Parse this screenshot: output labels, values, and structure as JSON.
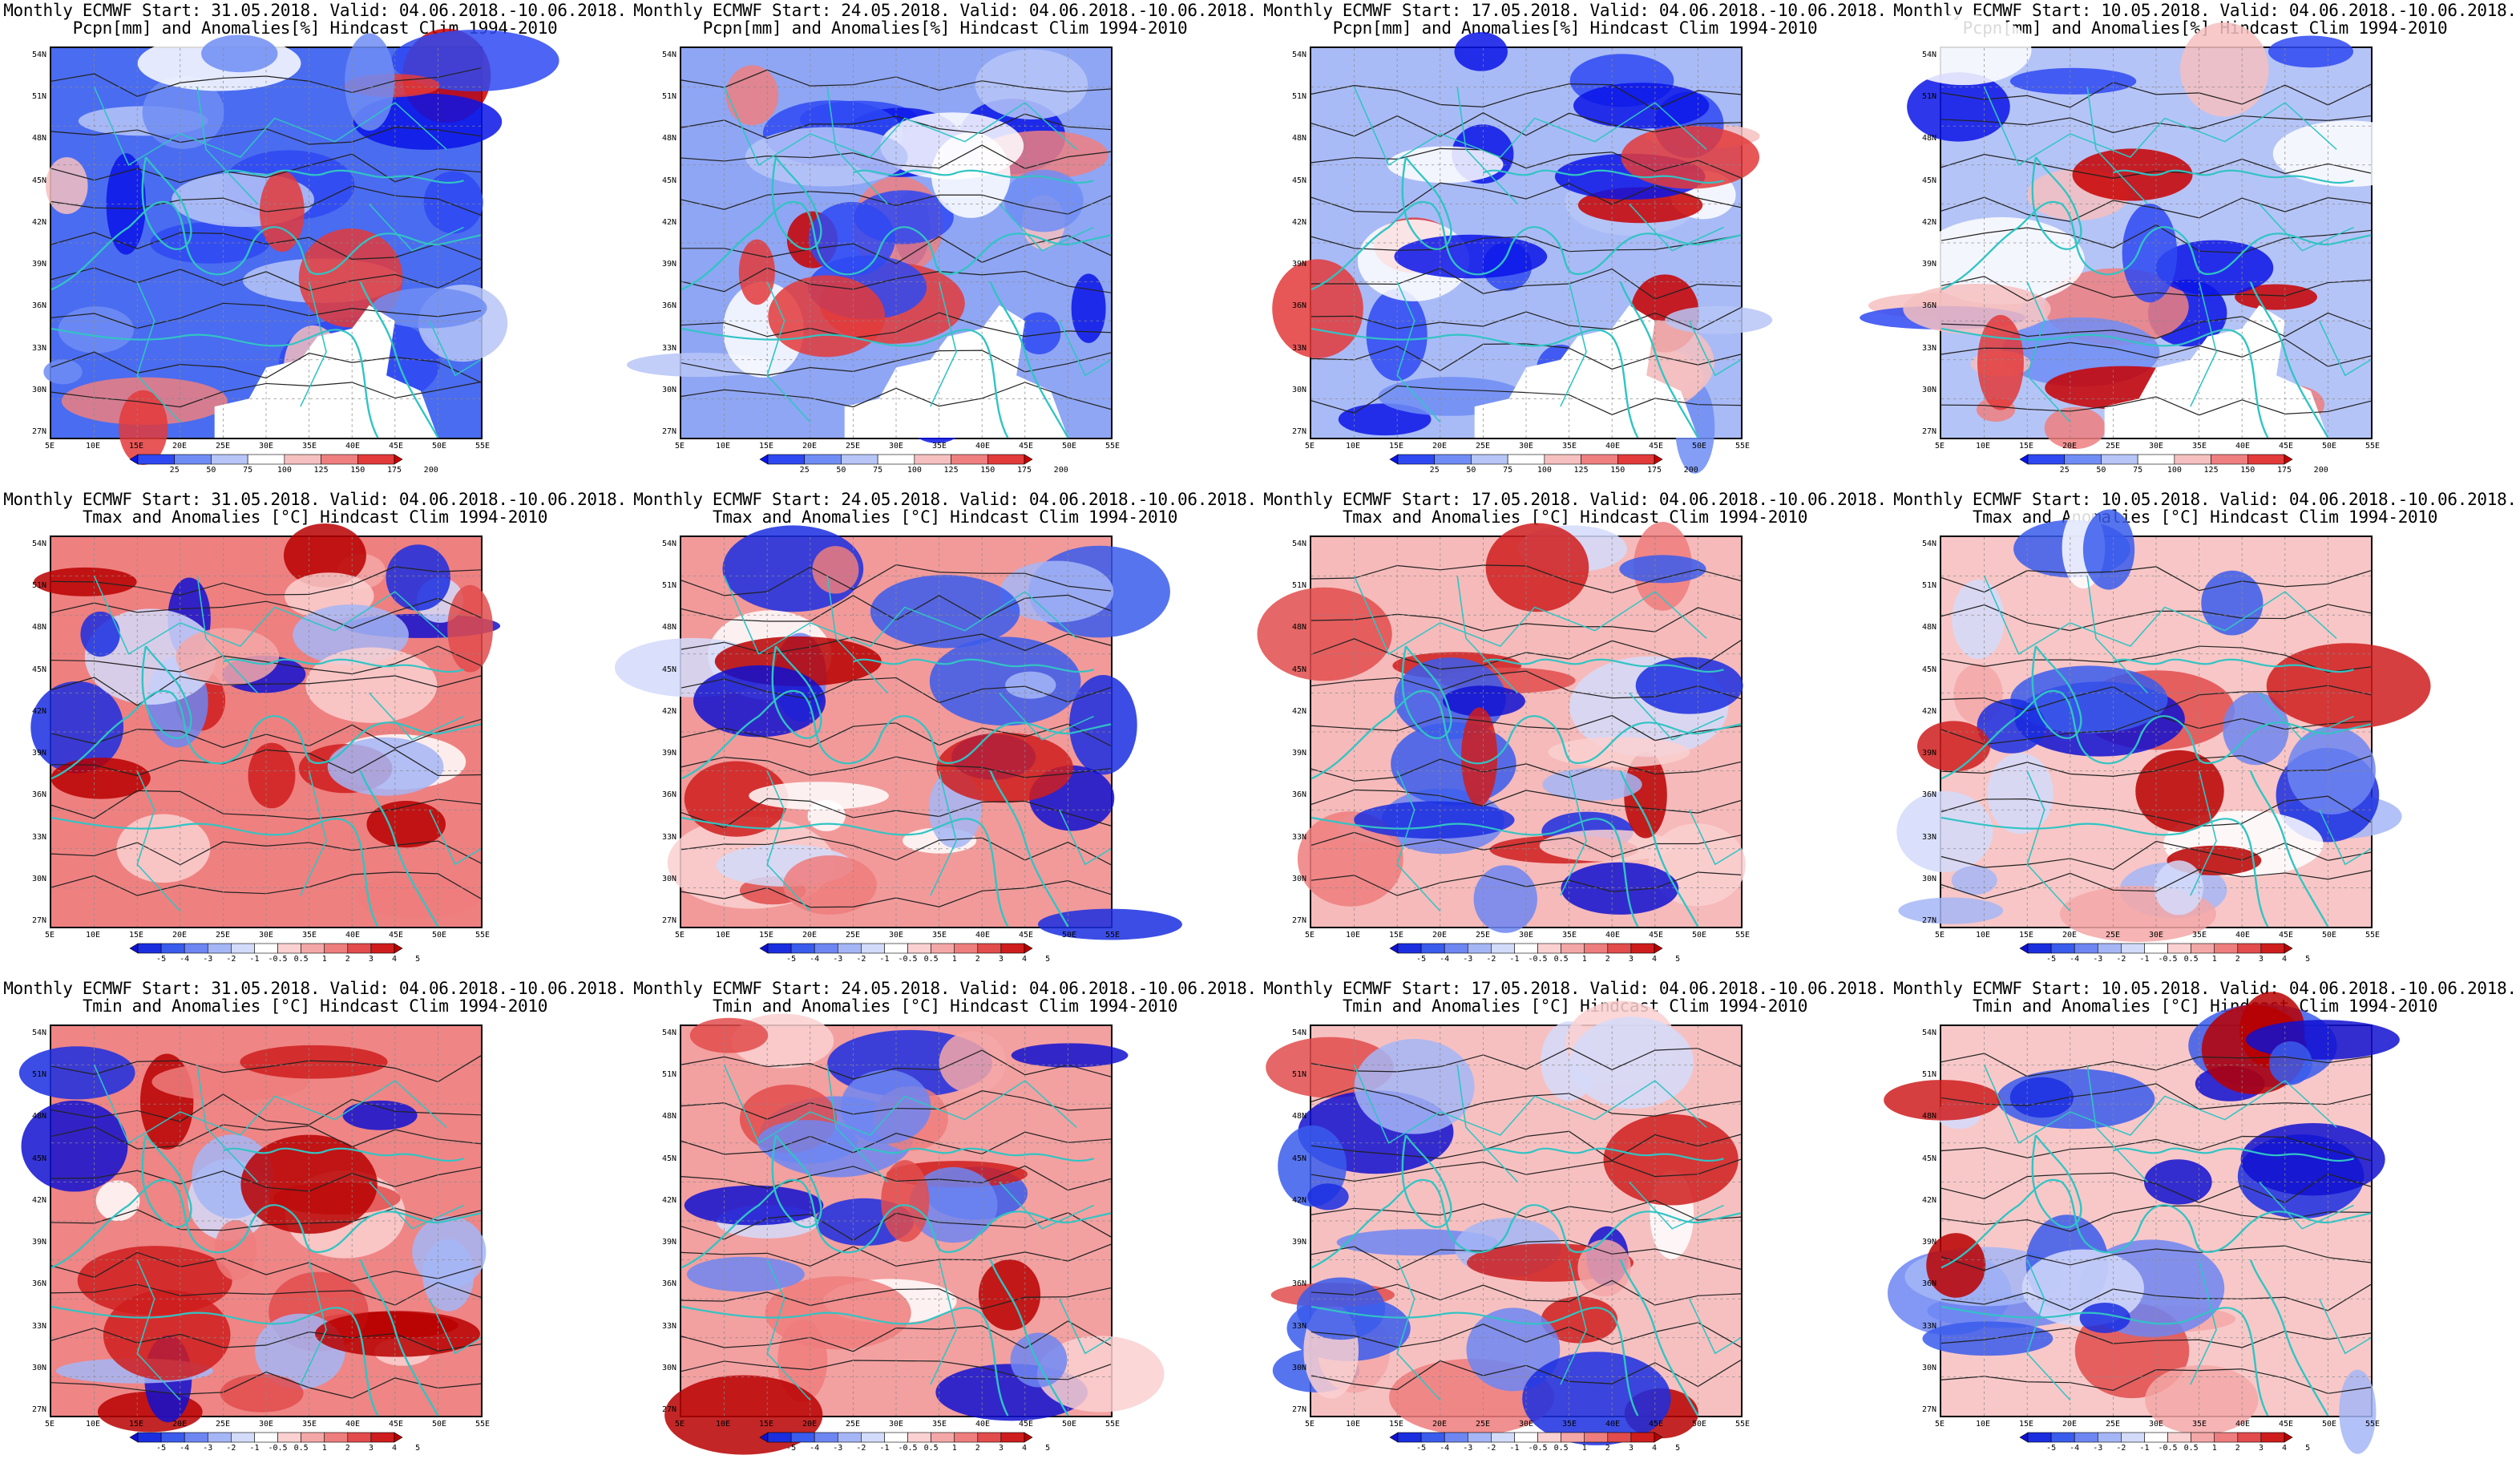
{
  "lat_ticks": [
    "54N",
    "51N",
    "48N",
    "45N",
    "42N",
    "39N",
    "36N",
    "33N",
    "30N",
    "27N"
  ],
  "lon_ticks": [
    "5E",
    "10E",
    "15E",
    "20E",
    "25E",
    "30E",
    "35E",
    "40E",
    "45E",
    "50E",
    "55E"
  ],
  "colorbars": {
    "pcpn": {
      "labels": [
        "25",
        "50",
        "75",
        "100",
        "125",
        "150",
        "175",
        "200"
      ],
      "colors": [
        "#0a14e6",
        "#2e49f2",
        "#6f8df5",
        "#b7c5f7",
        "#ffffff",
        "#f6c0c0",
        "#ef7f7f",
        "#e33a3a",
        "#c80000"
      ]
    },
    "temp": {
      "labels": [
        "-5",
        "-4",
        "-3",
        "-2",
        "-1",
        "-0.5",
        "0.5",
        "1",
        "2",
        "3",
        "4",
        "5"
      ],
      "colors": [
        "#1010d0",
        "#1a2ee0",
        "#3a5cec",
        "#6d86f2",
        "#a5b6f6",
        "#d3dbfa",
        "#ffffff",
        "#fad0d0",
        "#f4a7a7",
        "#ee7d7d",
        "#e24c4c",
        "#cf1d1d",
        "#b80000"
      ]
    }
  },
  "rows": [
    {
      "variable": "pcpn",
      "panels": [
        {
          "title": "Monthly ECMWF Start: 31.05.2018. Valid: 04.06.2018.-10.06.2018.\nPcpn[mm] and Anomalies[%] Hindcast Clim 1994-2010",
          "base": "#4a6cf0"
        },
        {
          "title": "Monthly ECMWF Start: 24.05.2018. Valid: 04.06.2018.-10.06.2018.\nPcpn[mm] and Anomalies[%] Hindcast Clim 1994-2010",
          "base": "#8fa6f4"
        },
        {
          "title": "Monthly ECMWF Start: 17.05.2018. Valid: 04.06.2018.-10.06.2018.\nPcpn[mm] and Anomalies[%] Hindcast Clim 1994-2010",
          "base": "#a9bbf6"
        },
        {
          "title": "Monthly ECMWF Start: 10.05.2018. Valid: 04.06.2018.-10.06.2018.\nPcpn[mm] and Anomalies[%] Hindcast Clim 1994-2010",
          "base": "#b5c4f7"
        }
      ]
    },
    {
      "variable": "temp",
      "panels": [
        {
          "title": "Monthly ECMWF Start: 31.05.2018. Valid: 04.06.2018.-10.06.2018.\nTmax and Anomalies [°C] Hindcast Clim 1994-2010",
          "base": "#ef8080"
        },
        {
          "title": "Monthly ECMWF Start: 24.05.2018. Valid: 04.06.2018.-10.06.2018.\nTmax and Anomalies [°C] Hindcast Clim 1994-2010",
          "base": "#f29a9a"
        },
        {
          "title": "Monthly ECMWF Start: 17.05.2018. Valid: 04.06.2018.-10.06.2018.\nTmax and Anomalies [°C] Hindcast Clim 1994-2010",
          "base": "#f6baba"
        },
        {
          "title": "Monthly ECMWF Start: 10.05.2018. Valid: 04.06.2018.-10.06.2018.\nTmax and Anomalies [°C] Hindcast Clim 1994-2010",
          "base": "#f8c6c6"
        }
      ]
    },
    {
      "variable": "temp",
      "panels": [
        {
          "title": "Monthly ECMWF Start: 31.05.2018. Valid: 04.06.2018.-10.06.2018.\nTmin and Anomalies [°C] Hindcast Clim 1994-2010",
          "base": "#ef8585"
        },
        {
          "title": "Monthly ECMWF Start: 24.05.2018. Valid: 04.06.2018.-10.06.2018.\nTmin and Anomalies [°C] Hindcast Clim 1994-2010",
          "base": "#f3a0a0"
        },
        {
          "title": "Monthly ECMWF Start: 17.05.2018. Valid: 04.06.2018.-10.06.2018.\nTmin and Anomalies [°C] Hindcast Clim 1994-2010",
          "base": "#f7c0c0"
        },
        {
          "title": "Monthly ECMWF Start: 10.05.2018. Valid: 04.06.2018.-10.06.2018.\nTmin and Anomalies [°C] Hindcast Clim 1994-2010",
          "base": "#f8c8c8"
        }
      ]
    }
  ]
}
